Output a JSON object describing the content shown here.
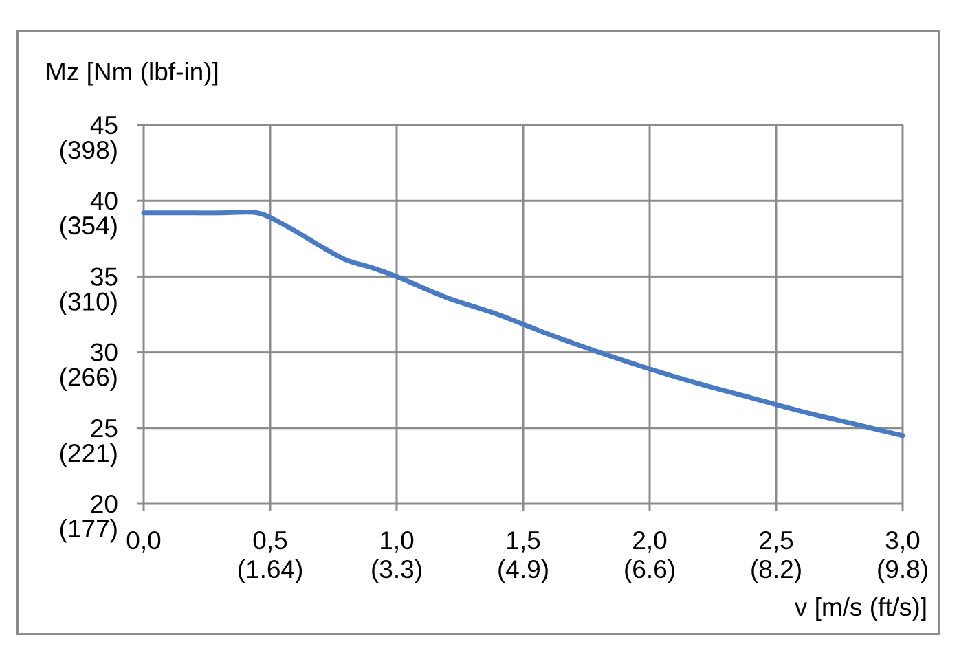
{
  "chart_data": {
    "type": "line",
    "ylabel": "Mz [Nm (lbf-in)]",
    "xlabel": "v [m/s (ft/s)]",
    "xlim": [
      0,
      3
    ],
    "ylim": [
      20,
      45
    ],
    "grid": true,
    "x_ticks": [
      {
        "value": 0.0,
        "primary": "0,0",
        "secondary": ""
      },
      {
        "value": 0.5,
        "primary": "0,5",
        "secondary": "(1.64)"
      },
      {
        "value": 1.0,
        "primary": "1,0",
        "secondary": "(3.3)"
      },
      {
        "value": 1.5,
        "primary": "1,5",
        "secondary": "(4.9)"
      },
      {
        "value": 2.0,
        "primary": "2,0",
        "secondary": "(6.6)"
      },
      {
        "value": 2.5,
        "primary": "2,5",
        "secondary": "(8.2)"
      },
      {
        "value": 3.0,
        "primary": "3,0",
        "secondary": "(9.8)"
      }
    ],
    "y_ticks": [
      {
        "value": 45,
        "primary": "45",
        "secondary": "(398)"
      },
      {
        "value": 40,
        "primary": "40",
        "secondary": "(354)"
      },
      {
        "value": 35,
        "primary": "35",
        "secondary": "(310)"
      },
      {
        "value": 30,
        "primary": "30",
        "secondary": "(266)"
      },
      {
        "value": 25,
        "primary": "25",
        "secondary": "(221)"
      },
      {
        "value": 20,
        "primary": "20",
        "secondary": "(177)"
      }
    ],
    "series": [
      {
        "color": "#4a7ac0",
        "x": [
          0,
          0.1,
          0.2,
          0.3,
          0.4,
          0.45,
          0.5,
          0.6,
          0.7,
          0.8,
          0.9,
          1.0,
          1.2,
          1.4,
          1.6,
          1.8,
          2.0,
          2.2,
          2.4,
          2.6,
          2.8,
          3.0
        ],
        "y": [
          39.2,
          39.2,
          39.2,
          39.2,
          39.25,
          39.2,
          38.9,
          38.0,
          37.0,
          36.1,
          35.6,
          35.0,
          33.6,
          32.5,
          31.2,
          30.0,
          28.9,
          27.9,
          27.0,
          26.1,
          25.3,
          24.5
        ]
      }
    ]
  }
}
